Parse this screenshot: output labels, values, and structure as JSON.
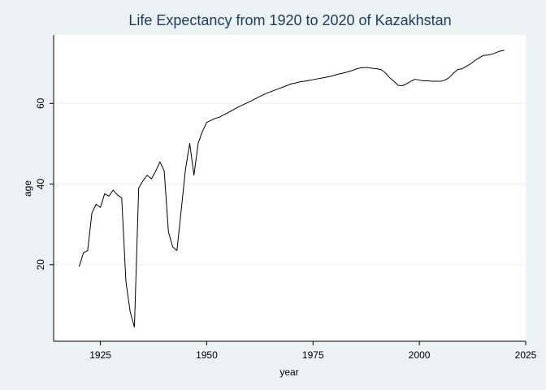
{
  "chart_data": {
    "type": "line",
    "title": "Life Expectancy from 1920 to 2020 of Kazakhstan",
    "xlabel": "year",
    "ylabel": "age",
    "xlim": [
      1914,
      2025
    ],
    "ylim": [
      1,
      77
    ],
    "xticks": [
      1925,
      1950,
      1975,
      2000,
      2025
    ],
    "yticks": [
      20,
      40,
      60
    ],
    "grid": true,
    "colors": {
      "background": "#eaf2f3",
      "plot": "#ffffff",
      "line": "#000000",
      "title": "#1e3a5f",
      "gridline": "#eaf2f3"
    },
    "series": [
      {
        "x": [
          1920,
          1921,
          1922,
          1923,
          1924,
          1925,
          1926,
          1927,
          1928,
          1929,
          1930,
          1931,
          1932,
          1933,
          1934,
          1935,
          1936,
          1937,
          1938,
          1939,
          1940,
          1941,
          1942,
          1943,
          1944,
          1945,
          1946,
          1947,
          1948,
          1949,
          1950,
          1951,
          1952,
          1953,
          1954,
          1955,
          1956,
          1957,
          1958,
          1959,
          1960,
          1961,
          1962,
          1963,
          1964,
          1965,
          1966,
          1967,
          1968,
          1969,
          1970,
          1971,
          1972,
          1973,
          1974,
          1975,
          1976,
          1977,
          1978,
          1979,
          1980,
          1981,
          1982,
          1983,
          1984,
          1985,
          1986,
          1987,
          1988,
          1989,
          1990,
          1991,
          1992,
          1993,
          1994,
          1995,
          1996,
          1997,
          1998,
          1999,
          2000,
          2001,
          2002,
          2003,
          2004,
          2005,
          2006,
          2007,
          2008,
          2009,
          2010,
          2011,
          2012,
          2013,
          2014,
          2015,
          2016,
          2017,
          2018,
          2019,
          2020
        ],
        "y": [
          19.5,
          22.9,
          23.5,
          32.8,
          35.0,
          34.2,
          37.6,
          37.0,
          38.5,
          37.3,
          36.6,
          15.8,
          8.3,
          4.5,
          39.0,
          40.8,
          42.2,
          41.3,
          43.2,
          45.5,
          43.3,
          28.1,
          24.4,
          23.5,
          33.5,
          43.6,
          50.1,
          42.2,
          50.2,
          53.1,
          55.3,
          55.8,
          56.3,
          56.6,
          57.2,
          57.7,
          58.3,
          58.9,
          59.4,
          59.9,
          60.4,
          60.9,
          61.5,
          62.0,
          62.5,
          62.9,
          63.3,
          63.7,
          64.1,
          64.5,
          64.9,
          65.1,
          65.4,
          65.5,
          65.7,
          65.9,
          66.1,
          66.3,
          66.5,
          66.7,
          67.0,
          67.3,
          67.5,
          67.8,
          68.1,
          68.5,
          68.8,
          68.9,
          68.9,
          68.7,
          68.6,
          68.4,
          67.6,
          66.4,
          65.5,
          64.5,
          64.4,
          64.9,
          65.5,
          66.0,
          65.8,
          65.6,
          65.6,
          65.5,
          65.5,
          65.5,
          65.8,
          66.4,
          67.5,
          68.4,
          68.6,
          69.2,
          69.8,
          70.6,
          71.3,
          71.9,
          72.0,
          72.2,
          72.6,
          73.0,
          73.2
        ]
      }
    ]
  }
}
